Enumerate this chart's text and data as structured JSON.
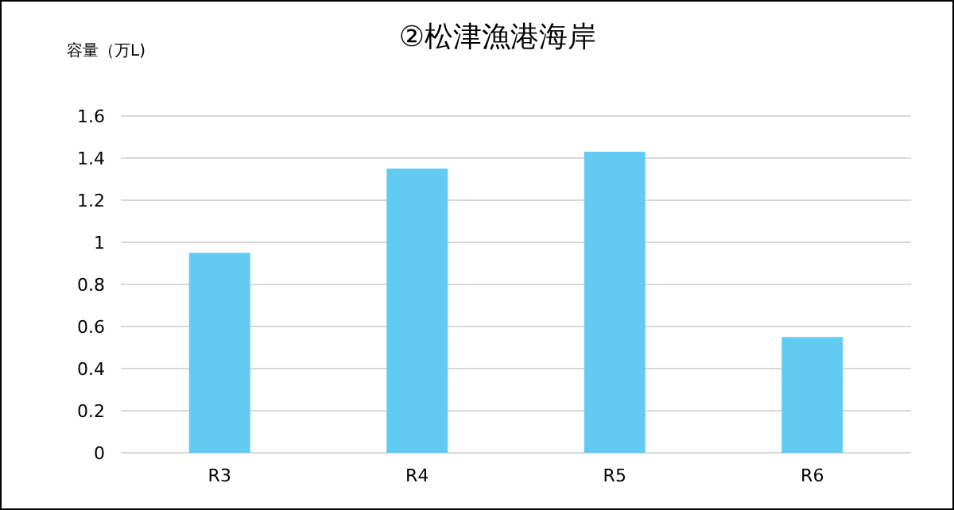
{
  "chart_data": {
    "type": "bar",
    "title": "②松津漁港海岸",
    "ylabel": "容量（万L)",
    "categories": [
      "R3",
      "R4",
      "R5",
      "R6"
    ],
    "values": [
      0.95,
      1.35,
      1.43,
      0.55
    ],
    "color": "#63cbf2",
    "ylim": [
      0,
      1.6
    ],
    "yticks": [
      0,
      0.2,
      0.4,
      0.6,
      0.8,
      1,
      1.2,
      1.4,
      1.6
    ],
    "grid": "y"
  }
}
